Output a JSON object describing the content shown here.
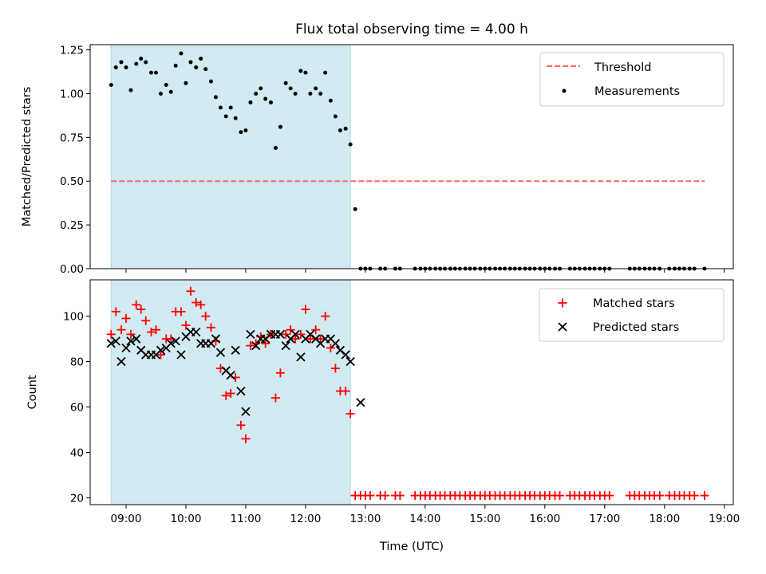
{
  "colors": {
    "shade": "#add8e6",
    "threshold": "#ff6666",
    "matched": "#ff0000",
    "predicted": "#000000",
    "measurement": "#000000"
  },
  "chart_data": [
    {
      "type": "scatter",
      "title": "Flux total observing time = 4.00 h",
      "xlabel": "",
      "ylabel": "Matched/Predicted stars",
      "ylim": [
        0,
        1.28
      ],
      "yticks": [
        "0.00",
        "0.25",
        "0.50",
        "0.75",
        "1.00",
        "1.25"
      ],
      "legend_position": "upper right",
      "threshold": {
        "name": "Threshold",
        "value": 0.5,
        "x_start": 8.75,
        "x_end": 18.67
      },
      "shaded_region": [
        8.75,
        12.75
      ],
      "series": [
        {
          "name": "Measurements",
          "marker": "dot",
          "x": [
            8.75,
            8.83,
            8.92,
            9.0,
            9.08,
            9.17,
            9.25,
            9.33,
            9.42,
            9.5,
            9.58,
            9.67,
            9.75,
            9.83,
            9.92,
            10.0,
            10.08,
            10.17,
            10.25,
            10.33,
            10.42,
            10.5,
            10.58,
            10.67,
            10.75,
            10.83,
            10.92,
            11.0,
            11.08,
            11.17,
            11.25,
            11.33,
            11.42,
            11.5,
            11.58,
            11.67,
            11.75,
            11.83,
            11.92,
            12.0,
            12.08,
            12.17,
            12.25,
            12.33,
            12.42,
            12.5,
            12.58,
            12.67,
            12.75,
            12.83,
            12.92,
            13.0,
            13.08,
            13.25,
            13.33,
            13.5,
            13.58,
            13.83,
            13.92,
            14.0,
            14.08,
            14.17,
            14.25,
            14.33,
            14.42,
            14.5,
            14.58,
            14.67,
            14.75,
            14.83,
            14.92,
            15.0,
            15.08,
            15.17,
            15.25,
            15.33,
            15.42,
            15.5,
            15.58,
            15.67,
            15.75,
            15.83,
            15.92,
            16.0,
            16.08,
            16.17,
            16.25,
            16.42,
            16.5,
            16.58,
            16.67,
            16.75,
            16.83,
            16.92,
            17.0,
            17.08,
            17.42,
            17.5,
            17.58,
            17.67,
            17.75,
            17.83,
            17.92,
            18.08,
            18.17,
            18.25,
            18.33,
            18.42,
            18.5,
            18.67
          ],
          "y": [
            1.05,
            1.15,
            1.18,
            1.15,
            1.02,
            1.17,
            1.2,
            1.18,
            1.12,
            1.12,
            1.0,
            1.05,
            1.01,
            1.16,
            1.23,
            1.06,
            1.18,
            1.15,
            1.2,
            1.14,
            1.07,
            0.98,
            0.92,
            0.87,
            0.92,
            0.86,
            0.78,
            0.79,
            0.95,
            1.0,
            1.03,
            0.97,
            0.95,
            0.69,
            0.81,
            1.06,
            1.03,
            1.0,
            1.13,
            1.12,
            1.0,
            1.03,
            1.0,
            1.12,
            0.96,
            0.87,
            0.79,
            0.8,
            0.71,
            0.34,
            0,
            0,
            0,
            0,
            0,
            0,
            0,
            0,
            0,
            0,
            0,
            0,
            0,
            0,
            0,
            0,
            0,
            0,
            0,
            0,
            0,
            0,
            0,
            0,
            0,
            0,
            0,
            0,
            0,
            0,
            0,
            0,
            0,
            0,
            0,
            0,
            0,
            0,
            0,
            0,
            0,
            0,
            0,
            0,
            0,
            0,
            0,
            0,
            0,
            0,
            0,
            0,
            0,
            0,
            0,
            0,
            0,
            0,
            0,
            0
          ]
        }
      ]
    },
    {
      "type": "scatter",
      "title": "",
      "xlabel": "Time (UTC)",
      "ylabel": "Count",
      "ylim": [
        17,
        116
      ],
      "yticks": [
        "20",
        "40",
        "60",
        "80",
        "100"
      ],
      "xlim": [
        8.4,
        19.15
      ],
      "xticks": [
        "09:00",
        "10:00",
        "11:00",
        "12:00",
        "13:00",
        "14:00",
        "15:00",
        "16:00",
        "17:00",
        "18:00",
        "19:00"
      ],
      "legend_position": "upper right",
      "shaded_region": [
        8.75,
        12.75
      ],
      "series": [
        {
          "name": "Matched stars",
          "marker": "plus",
          "x": [
            8.75,
            8.83,
            8.92,
            9.0,
            9.08,
            9.17,
            9.25,
            9.33,
            9.42,
            9.5,
            9.58,
            9.67,
            9.75,
            9.83,
            9.92,
            10.0,
            10.08,
            10.17,
            10.25,
            10.33,
            10.42,
            10.5,
            10.58,
            10.67,
            10.75,
            10.83,
            10.92,
            11.0,
            11.08,
            11.17,
            11.25,
            11.33,
            11.42,
            11.5,
            11.58,
            11.67,
            11.75,
            11.83,
            11.92,
            12.0,
            12.08,
            12.17,
            12.25,
            12.33,
            12.42,
            12.5,
            12.58,
            12.67,
            12.75,
            12.83,
            12.92,
            13.0,
            13.08,
            13.25,
            13.33,
            13.5,
            13.58,
            13.83,
            13.92,
            14.0,
            14.08,
            14.17,
            14.25,
            14.33,
            14.42,
            14.5,
            14.58,
            14.67,
            14.75,
            14.83,
            14.92,
            15.0,
            15.08,
            15.17,
            15.25,
            15.33,
            15.42,
            15.5,
            15.58,
            15.67,
            15.75,
            15.83,
            15.92,
            16.0,
            16.08,
            16.17,
            16.25,
            16.42,
            16.5,
            16.58,
            16.67,
            16.75,
            16.83,
            16.92,
            17.0,
            17.08,
            17.42,
            17.5,
            17.58,
            17.67,
            17.75,
            17.83,
            17.92,
            18.08,
            18.17,
            18.25,
            18.33,
            18.42,
            18.5,
            18.67
          ],
          "y": [
            92,
            102,
            94,
            99,
            92,
            105,
            103,
            98,
            93,
            94,
            83,
            90,
            90,
            102,
            102,
            96,
            111,
            106,
            105,
            100,
            95,
            89,
            77,
            65,
            66,
            73,
            52,
            46,
            87,
            88,
            91,
            88,
            92,
            64,
            75,
            92,
            94,
            90,
            92,
            103,
            90,
            94,
            90,
            100,
            86,
            77,
            67,
            67,
            57,
            21,
            21,
            21,
            21,
            21,
            21,
            21,
            21,
            21,
            21,
            21,
            21,
            21,
            21,
            21,
            21,
            21,
            21,
            21,
            21,
            21,
            21,
            21,
            21,
            21,
            21,
            21,
            21,
            21,
            21,
            21,
            21,
            21,
            21,
            21,
            21,
            21,
            21,
            21,
            21,
            21,
            21,
            21,
            21,
            21,
            21,
            21,
            21,
            21,
            21,
            21,
            21,
            21,
            21,
            21,
            21,
            21,
            21,
            21,
            21,
            21
          ]
        },
        {
          "name": "Predicted stars",
          "marker": "x",
          "x": [
            8.75,
            8.83,
            8.92,
            9.0,
            9.08,
            9.17,
            9.25,
            9.33,
            9.42,
            9.5,
            9.58,
            9.67,
            9.75,
            9.83,
            9.92,
            10.0,
            10.08,
            10.17,
            10.25,
            10.33,
            10.42,
            10.5,
            10.58,
            10.67,
            10.75,
            10.83,
            10.92,
            11.0,
            11.08,
            11.17,
            11.25,
            11.33,
            11.42,
            11.5,
            11.58,
            11.67,
            11.75,
            11.83,
            11.92,
            12.0,
            12.08,
            12.17,
            12.25,
            12.33,
            12.42,
            12.5,
            12.58,
            12.67,
            12.75,
            12.92
          ],
          "y": [
            88,
            89,
            80,
            86,
            89,
            90,
            85,
            83,
            83,
            83,
            85,
            86,
            88,
            89,
            83,
            91,
            93,
            93,
            88,
            88,
            88,
            90,
            84,
            76,
            74,
            85,
            67,
            58,
            92,
            87,
            90,
            90,
            92,
            92,
            92,
            87,
            90,
            92,
            82,
            90,
            92,
            90,
            88,
            90,
            90,
            88,
            85,
            83,
            80,
            62
          ]
        }
      ]
    }
  ]
}
